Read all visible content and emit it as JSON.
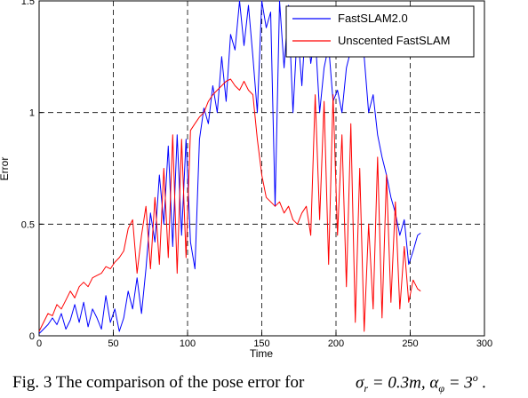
{
  "chart_data": {
    "type": "line",
    "title": "",
    "xlabel": "Time",
    "ylabel": "Error",
    "xlim": [
      0,
      300
    ],
    "ylim": [
      0,
      1.5
    ],
    "xticks": [
      "0",
      "50",
      "100",
      "150",
      "200",
      "250",
      "300"
    ],
    "yticks": [
      "0",
      "0.5",
      "1",
      "1.5"
    ],
    "grid": "dashed",
    "legend_position": "top-right",
    "series": [
      {
        "name": "FastSLAM2.0",
        "color": "#0000ff",
        "x": [
          0,
          3,
          6,
          9,
          12,
          15,
          18,
          21,
          24,
          27,
          30,
          33,
          36,
          39,
          42,
          45,
          48,
          51,
          54,
          57,
          60,
          63,
          66,
          69,
          72,
          75,
          78,
          81,
          84,
          87,
          90,
          93,
          96,
          99,
          102,
          105,
          108,
          111,
          114,
          117,
          120,
          123,
          126,
          129,
          132,
          135,
          138,
          141,
          144,
          147,
          150,
          153,
          156,
          159,
          162,
          165,
          168,
          171,
          174,
          177,
          180,
          183,
          186,
          189,
          192,
          195,
          198,
          201,
          204,
          207,
          210,
          213,
          216,
          219,
          222,
          225,
          228,
          231,
          234,
          237,
          240,
          243,
          246,
          249,
          252,
          255,
          257
        ],
        "y": [
          0.01,
          0.03,
          0.05,
          0.08,
          0.05,
          0.1,
          0.03,
          0.07,
          0.14,
          0.06,
          0.15,
          0.04,
          0.12,
          0.08,
          0.03,
          0.18,
          0.06,
          0.12,
          0.02,
          0.08,
          0.2,
          0.12,
          0.26,
          0.1,
          0.3,
          0.55,
          0.42,
          0.72,
          0.5,
          0.85,
          0.4,
          0.9,
          0.45,
          0.88,
          0.42,
          0.3,
          0.88,
          1.02,
          0.95,
          1.12,
          1.0,
          1.25,
          1.05,
          1.35,
          1.28,
          1.5,
          1.3,
          1.48,
          1.25,
          1.0,
          1.5,
          1.38,
          1.45,
          0.58,
          1.5,
          1.2,
          1.48,
          1.0,
          1.38,
          1.12,
          1.45,
          1.22,
          1.35,
          1.0,
          1.2,
          1.3,
          1.05,
          1.1,
          1.0,
          1.2,
          1.28,
          1.35,
          1.4,
          1.25,
          1.0,
          1.08,
          0.9,
          0.8,
          0.72,
          0.62,
          0.55,
          0.45,
          0.52,
          0.32,
          0.38,
          0.45,
          0.46
        ]
      },
      {
        "name": "Unscented FastSLAM",
        "color": "#ff0000",
        "x": [
          0,
          3,
          6,
          9,
          12,
          15,
          18,
          21,
          24,
          27,
          30,
          33,
          36,
          39,
          42,
          45,
          48,
          51,
          54,
          57,
          60,
          63,
          66,
          69,
          72,
          75,
          78,
          81,
          84,
          87,
          90,
          93,
          96,
          99,
          102,
          105,
          108,
          111,
          114,
          117,
          120,
          123,
          126,
          129,
          132,
          135,
          138,
          141,
          144,
          147,
          150,
          153,
          156,
          159,
          162,
          165,
          168,
          171,
          174,
          177,
          180,
          183,
          186,
          189,
          192,
          195,
          198,
          201,
          204,
          207,
          210,
          213,
          216,
          219,
          222,
          225,
          228,
          231,
          234,
          237,
          240,
          243,
          246,
          249,
          252,
          255,
          257
        ],
        "y": [
          0.02,
          0.06,
          0.1,
          0.09,
          0.14,
          0.12,
          0.16,
          0.2,
          0.17,
          0.22,
          0.24,
          0.22,
          0.26,
          0.27,
          0.28,
          0.31,
          0.3,
          0.33,
          0.35,
          0.38,
          0.48,
          0.52,
          0.28,
          0.45,
          0.58,
          0.3,
          0.62,
          0.32,
          0.75,
          0.35,
          0.9,
          0.28,
          0.88,
          0.35,
          0.92,
          0.95,
          0.98,
          1.0,
          1.05,
          1.08,
          1.1,
          1.12,
          1.14,
          1.15,
          1.12,
          1.1,
          1.14,
          1.1,
          1.08,
          0.88,
          0.72,
          0.62,
          0.6,
          0.58,
          0.6,
          0.55,
          0.58,
          0.52,
          0.5,
          0.55,
          0.58,
          0.45,
          1.08,
          0.52,
          1.05,
          0.32,
          1.08,
          0.45,
          0.9,
          0.22,
          0.95,
          0.06,
          0.75,
          0.02,
          0.5,
          0.12,
          0.8,
          0.08,
          0.72,
          0.15,
          0.6,
          0.12,
          0.4,
          0.15,
          0.25,
          0.21,
          0.2
        ]
      }
    ]
  },
  "caption": {
    "text": "Fig. 3 The comparison of the pose error for",
    "sigma_symbol": "σ",
    "sigma_sub": "r",
    "sigma_value": "= 0.3m",
    "separator": ",",
    "alpha_symbol": "α",
    "alpha_sub": "φ",
    "alpha_value": "= 3",
    "alpha_sup": "o",
    "end": "."
  }
}
